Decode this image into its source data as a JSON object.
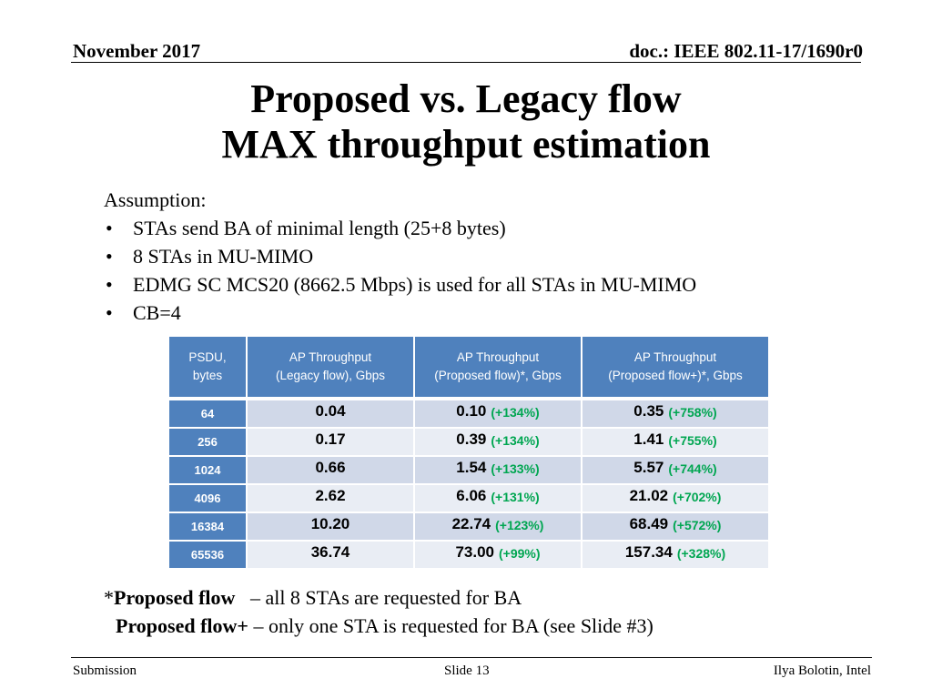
{
  "header": {
    "date": "November 2017",
    "doc_id": "doc.: IEEE 802.11-17/1690r0"
  },
  "title": {
    "line1": "Proposed vs. Legacy flow",
    "line2": "MAX throughput estimation"
  },
  "assumptions": {
    "heading": "Assumption:",
    "bullet_glyph": "•",
    "items": [
      "STAs send BA of minimal length (25+8 bytes)",
      "8 STAs in MU-MIMO",
      "EDMG SC MCS20 (8662.5 Mbps) is used for all STAs in MU-MIMO",
      "CB=4"
    ]
  },
  "table": {
    "headers": [
      [
        "PSDU,",
        "bytes"
      ],
      [
        "AP Throughput",
        "(Legacy flow), Gbps"
      ],
      [
        "AP Throughput",
        "(Proposed flow)*, Gbps"
      ],
      [
        "AP Throughput",
        "(Proposed flow+)*, Gbps"
      ]
    ],
    "rows": [
      {
        "psdu": "64",
        "legacy": "0.04",
        "proposed": "0.10",
        "proposed_pct": "(+134%)",
        "plus": "0.35",
        "plus_pct": "(+758%)"
      },
      {
        "psdu": "256",
        "legacy": "0.17",
        "proposed": "0.39",
        "proposed_pct": "(+134%)",
        "plus": "1.41",
        "plus_pct": "(+755%)"
      },
      {
        "psdu": "1024",
        "legacy": "0.66",
        "proposed": "1.54",
        "proposed_pct": "(+133%)",
        "plus": "5.57",
        "plus_pct": "(+744%)"
      },
      {
        "psdu": "4096",
        "legacy": "2.62",
        "proposed": "6.06",
        "proposed_pct": "(+131%)",
        "plus": "21.02",
        "plus_pct": "(+702%)"
      },
      {
        "psdu": "16384",
        "legacy": "10.20",
        "proposed": "22.74",
        "proposed_pct": "(+123%)",
        "plus": "68.49",
        "plus_pct": "(+572%)"
      },
      {
        "psdu": "65536",
        "legacy": "36.74",
        "proposed": "73.00",
        "proposed_pct": "(+99%)",
        "plus": "157.34",
        "plus_pct": "(+328%)"
      }
    ],
    "colors": {
      "header": "#4f81bd",
      "band_dark": "#d0d8e8",
      "band_light": "#e9edf4",
      "percent": "#00a651"
    }
  },
  "notes": {
    "note1_prefix": "*",
    "note1_bold": "Proposed flow",
    "note1_text": "– all 8 STAs are requested for BA",
    "note2_bold": "Proposed flow+",
    "note2_text": "– only one STA is requested for BA (see Slide #3)"
  },
  "footer": {
    "left": "Submission",
    "center": "Slide 13",
    "right": "Ilya Bolotin, Intel"
  }
}
